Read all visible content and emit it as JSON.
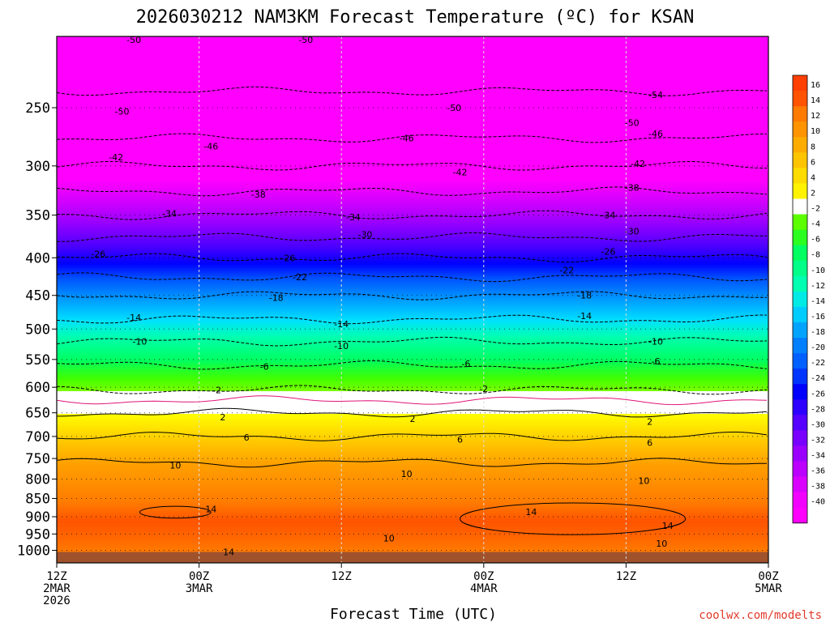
{
  "chart_data": {
    "type": "heatmap",
    "title": "2026030212 NAM3KM Forecast Temperature (ºC) for KSAN",
    "xlabel": "Forecast Time (UTC)",
    "ylabel": "",
    "credit": "coolwx.com/modelts",
    "x_ticks": [
      {
        "hour": 0,
        "lines": [
          "12Z",
          "2MAR",
          "2026"
        ]
      },
      {
        "hour": 12,
        "lines": [
          "00Z",
          "3MAR"
        ]
      },
      {
        "hour": 24,
        "lines": [
          "12Z"
        ]
      },
      {
        "hour": 36,
        "lines": [
          "00Z",
          "4MAR"
        ]
      },
      {
        "hour": 48,
        "lines": [
          "12Z"
        ]
      },
      {
        "hour": 60,
        "lines": [
          "00Z",
          "5MAR"
        ]
      }
    ],
    "xlim": [
      0,
      60
    ],
    "y_scale": "log-pressure (hPa, inverted)",
    "ylim": [
      200,
      1040
    ],
    "y_ticks": [
      250,
      300,
      350,
      400,
      450,
      500,
      550,
      600,
      650,
      700,
      750,
      800,
      850,
      900,
      950,
      1000
    ],
    "temperature_profile_hPa_C": [
      [
        200,
        -53
      ],
      [
        250,
        -49
      ],
      [
        275,
        -46
      ],
      [
        300,
        -42
      ],
      [
        325,
        -38
      ],
      [
        350,
        -34
      ],
      [
        375,
        -30
      ],
      [
        400,
        -26
      ],
      [
        425,
        -22
      ],
      [
        450,
        -18
      ],
      [
        485,
        -14
      ],
      [
        520,
        -10
      ],
      [
        560,
        -6
      ],
      [
        605,
        -2
      ],
      [
        625,
        0
      ],
      [
        650,
        2
      ],
      [
        700,
        6
      ],
      [
        760,
        10
      ],
      [
        860,
        13
      ],
      [
        910,
        15
      ],
      [
        960,
        14
      ],
      [
        1000,
        13
      ]
    ],
    "colorbar_labels": [
      16,
      14,
      12,
      10,
      8,
      6,
      4,
      2,
      -2,
      -4,
      -6,
      -8,
      -10,
      -12,
      -14,
      -16,
      -18,
      -20,
      -22,
      -24,
      -26,
      -28,
      -30,
      -32,
      -34,
      -36,
      -38,
      -40
    ],
    "contour_labels": [
      {
        "value": "-54",
        "hour": 50.5,
        "p": 240
      },
      {
        "value": "-50",
        "hour": 6.5,
        "p": 202
      },
      {
        "value": "-50",
        "hour": 21,
        "p": 202
      },
      {
        "value": "-50",
        "hour": 33.5,
        "p": 250
      },
      {
        "value": "-50",
        "hour": 5.5,
        "p": 253
      },
      {
        "value": "-50",
        "hour": 48.5,
        "p": 262
      },
      {
        "value": "-46",
        "hour": 13,
        "p": 282
      },
      {
        "value": "-46",
        "hour": 29.5,
        "p": 275
      },
      {
        "value": "-46",
        "hour": 50.5,
        "p": 271
      },
      {
        "value": "-42",
        "hour": 5,
        "p": 292
      },
      {
        "value": "-42",
        "hour": 34,
        "p": 306
      },
      {
        "value": "-42",
        "hour": 49,
        "p": 298
      },
      {
        "value": "-38",
        "hour": 17,
        "p": 328
      },
      {
        "value": "-38",
        "hour": 48.5,
        "p": 321
      },
      {
        "value": "-34",
        "hour": 9.5,
        "p": 348
      },
      {
        "value": "-34",
        "hour": 25,
        "p": 352
      },
      {
        "value": "-34",
        "hour": 46.5,
        "p": 350
      },
      {
        "value": "-30",
        "hour": 26,
        "p": 372
      },
      {
        "value": "-30",
        "hour": 48.5,
        "p": 368
      },
      {
        "value": "-26",
        "hour": 3.5,
        "p": 395
      },
      {
        "value": "-26",
        "hour": 19.5,
        "p": 400
      },
      {
        "value": "-26",
        "hour": 46.5,
        "p": 392
      },
      {
        "value": "-22",
        "hour": 20.5,
        "p": 425
      },
      {
        "value": "-22",
        "hour": 43,
        "p": 416
      },
      {
        "value": "-18",
        "hour": 18.5,
        "p": 453
      },
      {
        "value": "-18",
        "hour": 44.5,
        "p": 450
      },
      {
        "value": "-14",
        "hour": 6.5,
        "p": 482
      },
      {
        "value": "-14",
        "hour": 24,
        "p": 492
      },
      {
        "value": "-14",
        "hour": 44.5,
        "p": 480
      },
      {
        "value": "-10",
        "hour": 7,
        "p": 520
      },
      {
        "value": "-10",
        "hour": 24,
        "p": 527
      },
      {
        "value": "-10",
        "hour": 50.5,
        "p": 520
      },
      {
        "value": "-6",
        "hour": 17.5,
        "p": 562
      },
      {
        "value": "-6",
        "hour": 34.5,
        "p": 557
      },
      {
        "value": "-6",
        "hour": 50.5,
        "p": 553
      },
      {
        "value": "-2",
        "hour": 13.5,
        "p": 605
      },
      {
        "value": "-2",
        "hour": 36,
        "p": 603
      },
      {
        "value": "2",
        "hour": 14,
        "p": 659
      },
      {
        "value": "2",
        "hour": 30,
        "p": 662
      },
      {
        "value": "2",
        "hour": 50,
        "p": 668
      },
      {
        "value": "6",
        "hour": 16,
        "p": 702
      },
      {
        "value": "6",
        "hour": 34,
        "p": 706
      },
      {
        "value": "6",
        "hour": 50,
        "p": 714
      },
      {
        "value": "10",
        "hour": 10,
        "p": 766
      },
      {
        "value": "10",
        "hour": 29.5,
        "p": 787
      },
      {
        "value": "10",
        "hour": 49.5,
        "p": 804
      },
      {
        "value": "14",
        "hour": 13,
        "p": 879
      },
      {
        "value": "14",
        "hour": 40,
        "p": 886
      },
      {
        "value": "14",
        "hour": 51.5,
        "p": 925
      },
      {
        "value": "10",
        "hour": 28,
        "p": 962
      },
      {
        "value": "10",
        "hour": 51,
        "p": 978
      },
      {
        "value": "14",
        "hour": 14.5,
        "p": 1005
      }
    ]
  }
}
